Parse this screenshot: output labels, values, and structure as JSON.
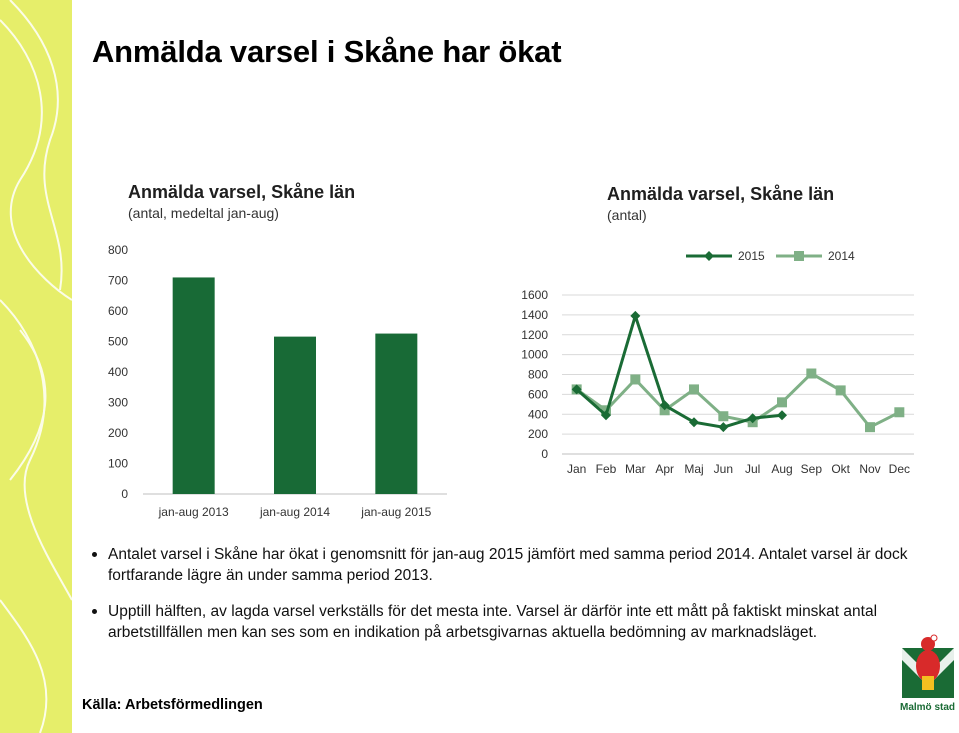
{
  "title": "Anmälda varsel i Skåne har ökat",
  "colors": {
    "band": "#e6ee6a",
    "bar": "#186a36",
    "line2015": "#1a6b35",
    "line2014": "#7fb086"
  },
  "chart_data": [
    {
      "type": "bar",
      "title": "Anmälda varsel, Skåne län",
      "subtitle": "(antal, medeltal jan-aug)",
      "categories": [
        "jan-aug 2013",
        "jan-aug 2014",
        "jan-aug 2015"
      ],
      "values": [
        710,
        516,
        526
      ],
      "ylim": [
        0,
        800
      ],
      "yticks": [
        0,
        100,
        200,
        300,
        400,
        500,
        600,
        700,
        800
      ],
      "grid": false
    },
    {
      "type": "line",
      "title": "Anmälda varsel, Skåne län",
      "subtitle": "(antal)",
      "categories": [
        "Jan",
        "Feb",
        "Mar",
        "Apr",
        "Maj",
        "Jun",
        "Jul",
        "Aug",
        "Sep",
        "Okt",
        "Nov",
        "Dec"
      ],
      "series": [
        {
          "name": "2015",
          "values": [
            650,
            390,
            1390,
            490,
            320,
            270,
            360,
            390,
            null,
            null,
            null,
            null
          ]
        },
        {
          "name": "2014",
          "values": [
            650,
            440,
            750,
            440,
            650,
            380,
            320,
            520,
            810,
            640,
            270,
            420
          ]
        }
      ],
      "ylim": [
        0,
        1600
      ],
      "yticks": [
        0,
        200,
        400,
        600,
        800,
        1000,
        1200,
        1400,
        1600
      ],
      "grid": true,
      "legend": "top-right"
    }
  ],
  "bullets": [
    "Antalet varsel i Skåne har ökat i  genomsnitt för jan-aug 2015 jämfört med samma period 2014. Antalet varsel är dock fortfarande lägre än under samma period 2013.",
    "Upptill hälften, av lagda varsel verkställs för det mesta inte. Varsel är därför inte ett mått på faktiskt minskat antal arbetstillfällen men kan ses som en indikation på arbetsgivarnas aktuella bedömning av marknadsläget."
  ],
  "source": "Källa: Arbetsförmedlingen",
  "logo": {
    "name": "Malmö stad"
  }
}
